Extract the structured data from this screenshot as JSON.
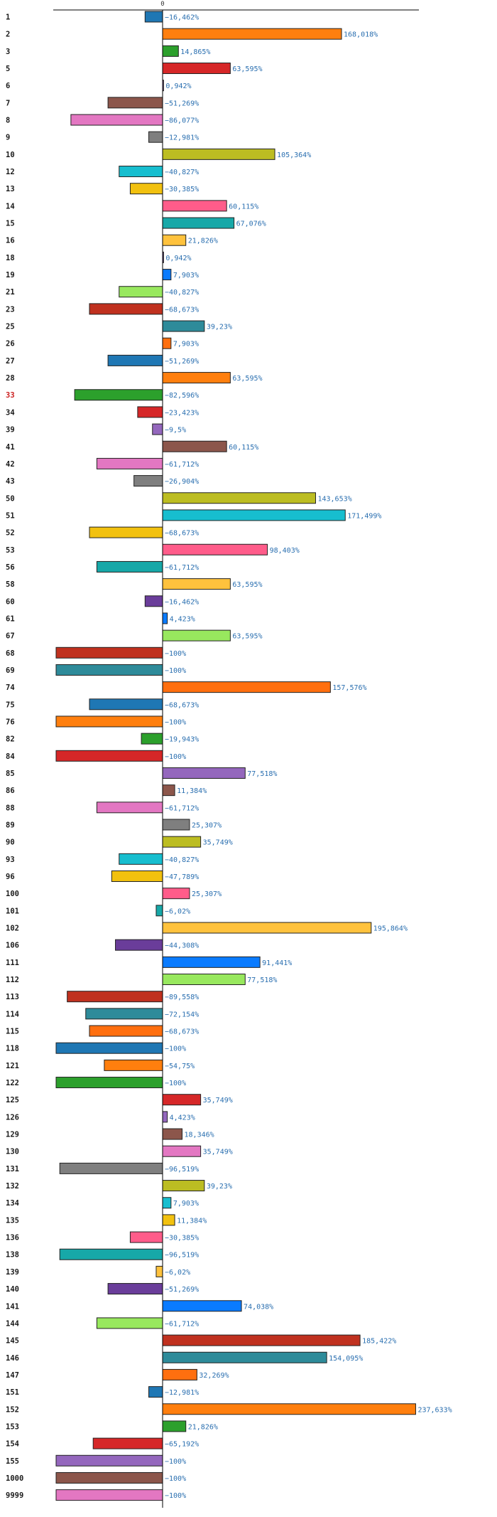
{
  "chart_data": {
    "type": "bar",
    "orientation": "horizontal",
    "title": "",
    "xlabel": "",
    "ylabel": "",
    "x_tick_labels": [
      "0"
    ],
    "xlim": [
      -105,
      245
    ],
    "grid": false,
    "legend": "none",
    "highlight_category": "33",
    "value_suffix": "%",
    "categories": [
      "1",
      "2",
      "3",
      "5",
      "6",
      "7",
      "8",
      "9",
      "10",
      "12",
      "13",
      "14",
      "15",
      "16",
      "18",
      "19",
      "21",
      "23",
      "25",
      "26",
      "27",
      "28",
      "33",
      "34",
      "39",
      "41",
      "42",
      "43",
      "50",
      "51",
      "52",
      "53",
      "56",
      "58",
      "60",
      "61",
      "67",
      "68",
      "69",
      "74",
      "75",
      "76",
      "82",
      "84",
      "85",
      "86",
      "88",
      "89",
      "90",
      "93",
      "96",
      "100",
      "101",
      "102",
      "106",
      "111",
      "112",
      "113",
      "114",
      "115",
      "118",
      "121",
      "122",
      "125",
      "126",
      "129",
      "130",
      "131",
      "132",
      "134",
      "135",
      "136",
      "138",
      "139",
      "140",
      "141",
      "144",
      "145",
      "146",
      "147",
      "151",
      "152",
      "153",
      "154",
      "155",
      "1000",
      "9999"
    ],
    "values": [
      -16.462,
      168.018,
      14.865,
      63.595,
      0.942,
      -51.269,
      -86.077,
      -12.981,
      105.364,
      -40.827,
      -30.385,
      60.115,
      67.076,
      21.826,
      0.942,
      7.903,
      -40.827,
      -68.673,
      39.23,
      7.903,
      -51.269,
      63.595,
      -82.596,
      -23.423,
      -9.5,
      60.115,
      -61.712,
      -26.904,
      143.653,
      171.499,
      -68.673,
      98.403,
      -61.712,
      63.595,
      -16.462,
      4.423,
      63.595,
      -100,
      -100,
      157.576,
      -68.673,
      -100,
      -19.943,
      -100,
      77.518,
      11.384,
      -61.712,
      25.307,
      35.749,
      -40.827,
      -47.789,
      25.307,
      -6.02,
      195.864,
      -44.308,
      91.441,
      77.518,
      -89.558,
      -72.154,
      -68.673,
      -100,
      -54.75,
      -100,
      35.749,
      4.423,
      18.346,
      35.749,
      -96.519,
      39.23,
      7.903,
      11.384,
      -30.385,
      -96.519,
      -6.02,
      -51.269,
      74.038,
      -61.712,
      185.422,
      154.095,
      32.269,
      -12.981,
      237.633,
      21.826,
      -65.192,
      -100,
      -100,
      -100
    ],
    "value_labels": [
      "−16,462%",
      "168,018%",
      "14,865%",
      "63,595%",
      "0,942%",
      "−51,269%",
      "−86,077%",
      "−12,981%",
      "105,364%",
      "−40,827%",
      "−30,385%",
      "60,115%",
      "67,076%",
      "21,826%",
      "0,942%",
      "7,903%",
      "−40,827%",
      "−68,673%",
      "39,23%",
      "7,903%",
      "−51,269%",
      "63,595%",
      "−82,596%",
      "−23,423%",
      "−9,5%",
      "60,115%",
      "−61,712%",
      "−26,904%",
      "143,653%",
      "171,499%",
      "−68,673%",
      "98,403%",
      "−61,712%",
      "63,595%",
      "−16,462%",
      "4,423%",
      "63,595%",
      "−100%",
      "−100%",
      "157,576%",
      "−68,673%",
      "−100%",
      "−19,943%",
      "−100%",
      "77,518%",
      "11,384%",
      "−61,712%",
      "25,307%",
      "35,749%",
      "−40,827%",
      "−47,789%",
      "25,307%",
      "−6,02%",
      "195,864%",
      "−44,308%",
      "91,441%",
      "77,518%",
      "−89,558%",
      "−72,154%",
      "−68,673%",
      "−100%",
      "−54,75%",
      "−100%",
      "35,749%",
      "4,423%",
      "18,346%",
      "35,749%",
      "−96,519%",
      "39,23%",
      "7,903%",
      "11,384%",
      "−30,385%",
      "−96,519%",
      "−6,02%",
      "−51,269%",
      "74,038%",
      "−61,712%",
      "185,422%",
      "154,095%",
      "32,269%",
      "−12,981%",
      "237,633%",
      "21,826%",
      "−65,192%",
      "−100%",
      "−100%",
      "−100%"
    ],
    "colors": [
      "#1f77b4",
      "#ff7f0e",
      "#2ca02c",
      "#d62728",
      "#9467bd",
      "#8c564b",
      "#e377c2",
      "#7f7f7f",
      "#bcbd22",
      "#17becf",
      "#f2c10f",
      "#ff5c8a",
      "#17a8a8",
      "#ffc23d",
      "#6a3d9a",
      "#0a7bff",
      "#98e85e",
      "#c0311f",
      "#2e8b9a",
      "#ff6f0f"
    ]
  }
}
